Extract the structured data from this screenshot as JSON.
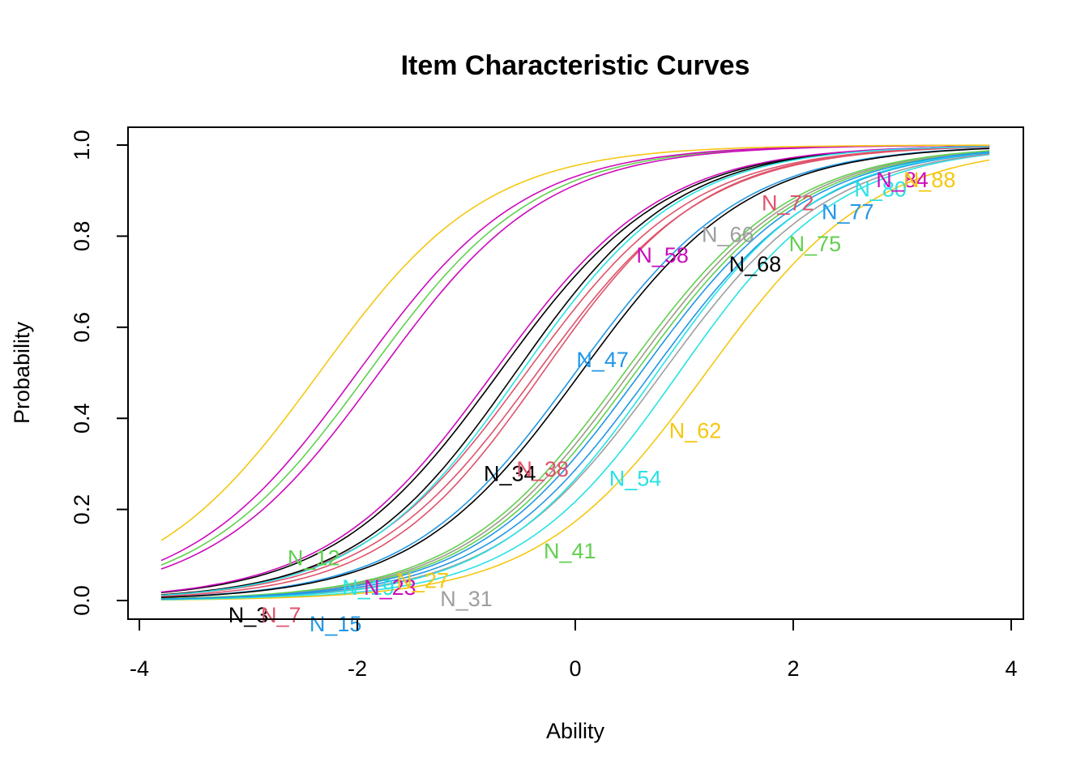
{
  "chart_data": {
    "type": "line",
    "title": "Item Characteristic Curves",
    "xlabel": "Ability",
    "ylabel": "Probability",
    "xlim": [
      -4,
      4
    ],
    "ylim": [
      0,
      1
    ],
    "x_range": [
      -3.8,
      3.8
    ],
    "x_ticks": [
      "-4",
      "-2",
      "0",
      "2",
      "4"
    ],
    "y_ticks": [
      "0.0",
      "0.2",
      "0.4",
      "0.6",
      "0.8",
      "1.0"
    ],
    "grid": false,
    "legend": "none",
    "series": [
      {
        "name": "N_3",
        "a": 1.3,
        "b": -0.7,
        "color": "#000000",
        "label_x": -3.0,
        "label_y": -0.03
      },
      {
        "name": "N_7",
        "a": 1.3,
        "b": -0.45,
        "color": "#DF536B",
        "label_x": -2.7,
        "label_y": -0.03
      },
      {
        "name": "N_12",
        "a": 1.3,
        "b": -1.9,
        "color": "#61D04F",
        "label_x": -2.4,
        "label_y": 0.095
      },
      {
        "name": "N_15",
        "a": 1.3,
        "b": 0.0,
        "color": "#2297E6",
        "label_x": -2.2,
        "label_y": -0.05
      },
      {
        "name": "N_19",
        "a": 1.35,
        "b": 0.95,
        "color": "#28E2E5",
        "label_x": -1.9,
        "label_y": 0.03
      },
      {
        "name": "N_23",
        "a": 1.3,
        "b": -2.0,
        "color": "#CD0BBC",
        "label_x": -1.7,
        "label_y": 0.03
      },
      {
        "name": "N_27",
        "a": 1.3,
        "b": 1.2,
        "color": "#F5C710",
        "label_x": -1.4,
        "label_y": 0.045
      },
      {
        "name": "N_31",
        "a": 1.3,
        "b": 0.8,
        "color": "#9E9E9E",
        "label_x": -1.0,
        "label_y": 0.005
      },
      {
        "name": "N_34",
        "a": 1.35,
        "b": -0.55,
        "color": "#000000",
        "label_x": -0.6,
        "label_y": 0.28
      },
      {
        "name": "N_38",
        "a": 1.35,
        "b": -0.3,
        "color": "#DF536B",
        "label_x": -0.3,
        "label_y": 0.29
      },
      {
        "name": "N_41",
        "a": 1.3,
        "b": 0.55,
        "color": "#61D04F",
        "label_x": -0.05,
        "label_y": 0.11
      },
      {
        "name": "N_47",
        "a": 1.3,
        "b": 0.7,
        "color": "#2297E6",
        "label_x": 0.25,
        "label_y": 0.53
      },
      {
        "name": "N_54",
        "a": 1.35,
        "b": 0.75,
        "color": "#28E2E5",
        "label_x": 0.55,
        "label_y": 0.27
      },
      {
        "name": "N_58",
        "a": 1.3,
        "b": -0.75,
        "color": "#CD0BBC",
        "label_x": 0.8,
        "label_y": 0.76
      },
      {
        "name": "N_62",
        "a": 1.3,
        "b": 0.5,
        "color": "#F5C710",
        "label_x": 1.1,
        "label_y": 0.375
      },
      {
        "name": "N_66",
        "a": 1.3,
        "b": 0.5,
        "color": "#9E9E9E",
        "label_x": 1.4,
        "label_y": 0.805
      },
      {
        "name": "N_68",
        "a": 1.3,
        "b": 0.05,
        "color": "#000000",
        "label_x": 1.65,
        "label_y": 0.74
      },
      {
        "name": "N_72",
        "a": 1.3,
        "b": -0.35,
        "color": "#DF536B",
        "label_x": 1.95,
        "label_y": 0.875
      },
      {
        "name": "N_75",
        "a": 1.3,
        "b": 0.45,
        "color": "#61D04F",
        "label_x": 2.2,
        "label_y": 0.785
      },
      {
        "name": "N_77",
        "a": 1.3,
        "b": 0.6,
        "color": "#2297E6",
        "label_x": 2.5,
        "label_y": 0.855
      },
      {
        "name": "N_80",
        "a": 1.35,
        "b": -0.5,
        "color": "#28E2E5",
        "label_x": 2.8,
        "label_y": 0.905
      },
      {
        "name": "N_84",
        "a": 1.3,
        "b": -1.8,
        "color": "#CD0BBC",
        "label_x": 3.0,
        "label_y": 0.925
      },
      {
        "name": "N_88",
        "a": 1.3,
        "b": -2.35,
        "color": "#F5C710",
        "label_x": 3.25,
        "label_y": 0.925
      }
    ]
  }
}
